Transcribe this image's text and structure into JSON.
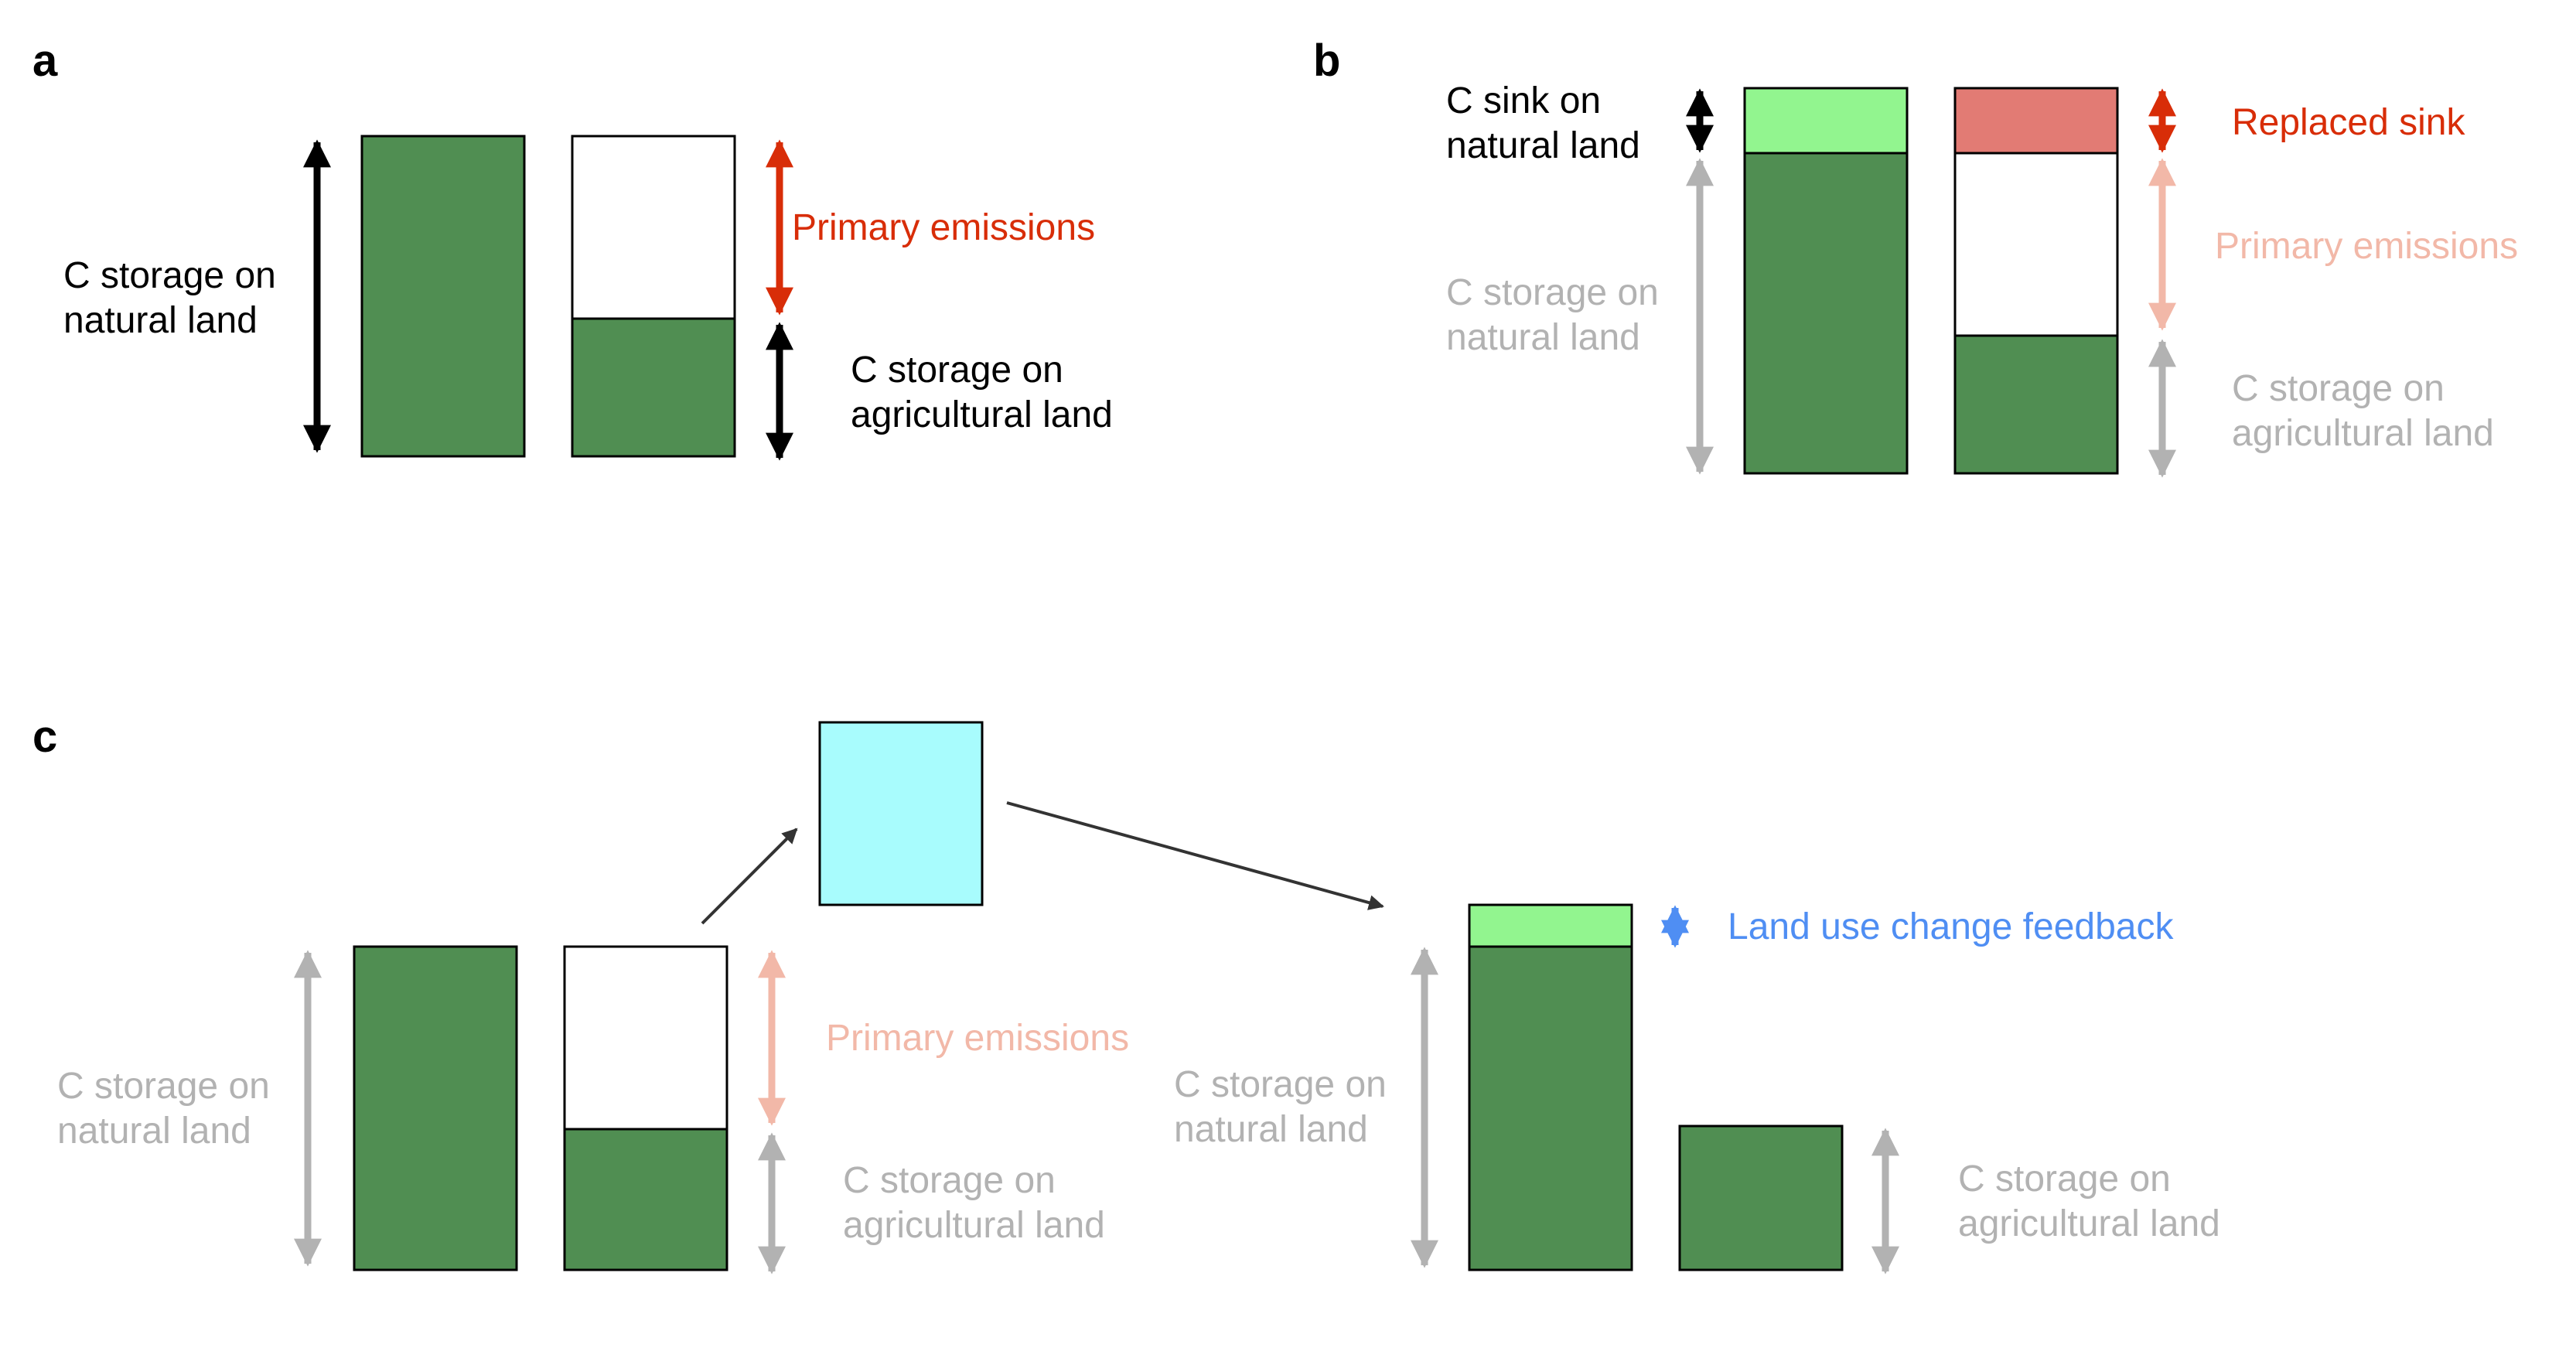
{
  "colors": {
    "dark_green": "#508e52",
    "light_green": "#92f58f",
    "salmon": "#e27b74",
    "cyan": "#a8fcfd",
    "black": "#000000",
    "red": "#d82d08",
    "gray": "#b2b2b2",
    "pale_red": "#f2b8a8",
    "blue": "#4f8ef3"
  },
  "panels": {
    "a": {
      "label": "a",
      "natural_l1": "C storage on",
      "natural_l2": "natural land",
      "primary": "Primary emissions",
      "agri_l1": "C storage on",
      "agri_l2": "agricultural land"
    },
    "b": {
      "label": "b",
      "sink_l1": "C sink on",
      "sink_l2": "natural land",
      "replaced": "Replaced sink",
      "natural_l1": "C storage on",
      "natural_l2": "natural land",
      "primary": "Primary emissions",
      "agri_l1": "C storage on",
      "agri_l2": "agricultural land"
    },
    "c": {
      "label": "c",
      "natural_l1": "C storage on",
      "natural_l2": "natural land",
      "primary": "Primary emissions",
      "agri_l1": "C storage on",
      "agri_l2": "agricultural land",
      "feedback": "Land use change feedback",
      "natural2_l1": "C storage on",
      "natural2_l2": "natural land",
      "agri2_l1": "C storage on",
      "agri2_l2": "agricultural land"
    }
  }
}
